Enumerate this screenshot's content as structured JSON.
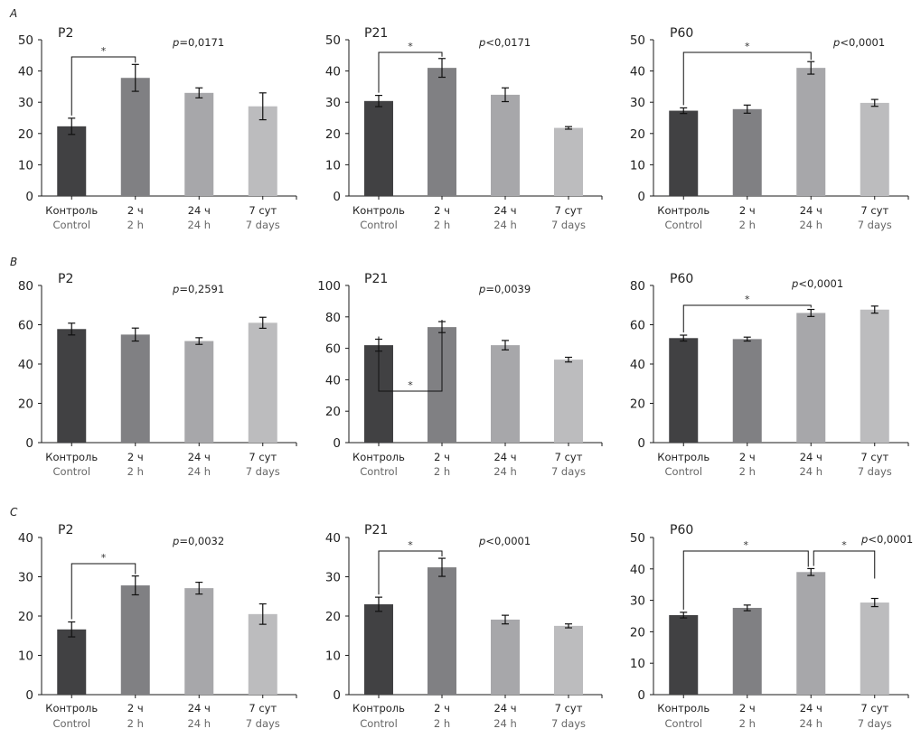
{
  "colors": {
    "bars": [
      "#414143",
      "#808083",
      "#a7a7aa",
      "#bcbcbe"
    ],
    "axis": "#1a1a1a",
    "text": "#222222",
    "secondary_text": "#666666"
  },
  "rows": [
    {
      "letter": "A"
    },
    {
      "letter": "B"
    },
    {
      "letter": "C"
    }
  ],
  "categories_ru": [
    "Контроль",
    "2 ч",
    "24 ч",
    "7 сут"
  ],
  "categories_en": [
    "Control",
    "2 h",
    "24 h",
    "7 days"
  ],
  "chart_data": [
    {
      "type": "bar",
      "row": "A",
      "title": "P2",
      "pvalue": "=0,0171",
      "categories": [
        "Контроль / Control",
        "2 ч / 2 h",
        "24 ч / 24 h",
        "7 сут / 7 days"
      ],
      "values": [
        22.3,
        37.8,
        33.0,
        28.7
      ],
      "errors": [
        2.6,
        4.3,
        1.6,
        4.3
      ],
      "ylim": [
        0,
        50
      ],
      "yticks": [
        "0",
        "10",
        "20",
        "30",
        "40",
        "50"
      ],
      "significance": [
        {
          "from": 0,
          "to": 1,
          "label": "*"
        }
      ]
    },
    {
      "type": "bar",
      "row": "A",
      "title": "P21",
      "pvalue": "<0,0171",
      "categories": [
        "Контроль / Control",
        "2 ч / 2 h",
        "24 ч / 24 h",
        "7 сут / 7 days"
      ],
      "values": [
        30.4,
        41.0,
        32.4,
        21.8
      ],
      "errors": [
        1.8,
        3.0,
        2.2,
        0.4
      ],
      "ylim": [
        0,
        50
      ],
      "yticks": [
        "0",
        "10",
        "20",
        "30",
        "40",
        "50"
      ],
      "significance": [
        {
          "from": 0,
          "to": 1,
          "label": "*"
        }
      ]
    },
    {
      "type": "bar",
      "row": "A",
      "title": "P60",
      "pvalue": "<0,0001",
      "categories": [
        "Контроль / Control",
        "2 ч / 2 h",
        "24 ч / 24 h",
        "7 сут / 7 days"
      ],
      "values": [
        27.3,
        27.8,
        41.0,
        29.8
      ],
      "errors": [
        0.9,
        1.3,
        2.0,
        1.1
      ],
      "ylim": [
        0,
        50
      ],
      "yticks": [
        "0",
        "10",
        "20",
        "30",
        "40",
        "50"
      ],
      "significance": [
        {
          "from": 0,
          "to": 2,
          "label": "*"
        }
      ]
    },
    {
      "type": "bar",
      "row": "B",
      "title": "P2",
      "pvalue": "=0,2591",
      "categories": [
        "Контроль / Control",
        "2 ч / 2 h",
        "24 ч / 24 h",
        "7 сут / 7 days"
      ],
      "values": [
        57.8,
        55.0,
        51.7,
        61.0
      ],
      "errors": [
        3.0,
        3.3,
        1.7,
        2.8
      ],
      "ylim": [
        0,
        80
      ],
      "yticks": [
        "0",
        "20",
        "40",
        "60",
        "80"
      ],
      "significance": []
    },
    {
      "type": "bar",
      "row": "B",
      "title": "P21",
      "pvalue": "=0,0039",
      "categories": [
        "Контроль / Control",
        "2 ч / 2 h",
        "24 ч / 24 h",
        "7 сут / 7 days"
      ],
      "values": [
        62.0,
        73.5,
        62.0,
        52.8
      ],
      "errors": [
        3.8,
        3.5,
        3.0,
        1.5
      ],
      "ylim": [
        0,
        100
      ],
      "yticks": [
        "0",
        "20",
        "40",
        "60",
        "80",
        "100"
      ],
      "significance": [
        {
          "from": 0,
          "to": 1,
          "label": "*"
        }
      ]
    },
    {
      "type": "bar",
      "row": "B",
      "title": "P60",
      "pvalue": "<0,0001",
      "categories": [
        "Контроль / Control",
        "2 ч / 2 h",
        "24 ч / 24 h",
        "7 сут / 7 days"
      ],
      "values": [
        53.2,
        52.7,
        66.0,
        67.7
      ],
      "errors": [
        1.5,
        1.0,
        1.8,
        1.8
      ],
      "ylim": [
        0,
        80
      ],
      "yticks": [
        "0",
        "20",
        "40",
        "60",
        "80"
      ],
      "significance": [
        {
          "from": 0,
          "to": 2,
          "label": "*"
        }
      ]
    },
    {
      "type": "bar",
      "row": "C",
      "title": "P2",
      "pvalue": "=0,0032",
      "categories": [
        "Контроль / Control",
        "2 ч / 2 h",
        "24 ч / 24 h",
        "7 сут / 7 days"
      ],
      "values": [
        16.6,
        27.8,
        27.1,
        20.5
      ],
      "errors": [
        1.9,
        2.4,
        1.5,
        2.6
      ],
      "ylim": [
        0,
        40
      ],
      "yticks": [
        "0",
        "10",
        "20",
        "30",
        "40"
      ],
      "significance": [
        {
          "from": 0,
          "to": 1,
          "label": "*"
        }
      ]
    },
    {
      "type": "bar",
      "row": "C",
      "title": "P21",
      "pvalue": "<0,0001",
      "categories": [
        "Контроль / Control",
        "2 ч / 2 h",
        "24 ч / 24 h",
        "7 сут / 7 days"
      ],
      "values": [
        23.0,
        32.4,
        19.1,
        17.5
      ],
      "errors": [
        1.8,
        2.3,
        1.1,
        0.5
      ],
      "ylim": [
        0,
        40
      ],
      "yticks": [
        "0",
        "10",
        "20",
        "30",
        "40"
      ],
      "significance": [
        {
          "from": 0,
          "to": 1,
          "label": "*"
        }
      ]
    },
    {
      "type": "bar",
      "row": "C",
      "title": "P60",
      "pvalue": "<0,0001",
      "categories": [
        "Контроль / Control",
        "2 ч / 2 h",
        "24 ч / 24 h",
        "7 сут / 7 days"
      ],
      "values": [
        25.3,
        27.6,
        39.0,
        29.3
      ],
      "errors": [
        0.9,
        0.9,
        1.1,
        1.3
      ],
      "ylim": [
        0,
        50
      ],
      "yticks": [
        "0",
        "10",
        "20",
        "30",
        "40",
        "50"
      ],
      "significance": [
        {
          "from": 0,
          "to": 2,
          "label": "*"
        },
        {
          "from": 2,
          "to": 3,
          "label": "*"
        }
      ]
    }
  ]
}
